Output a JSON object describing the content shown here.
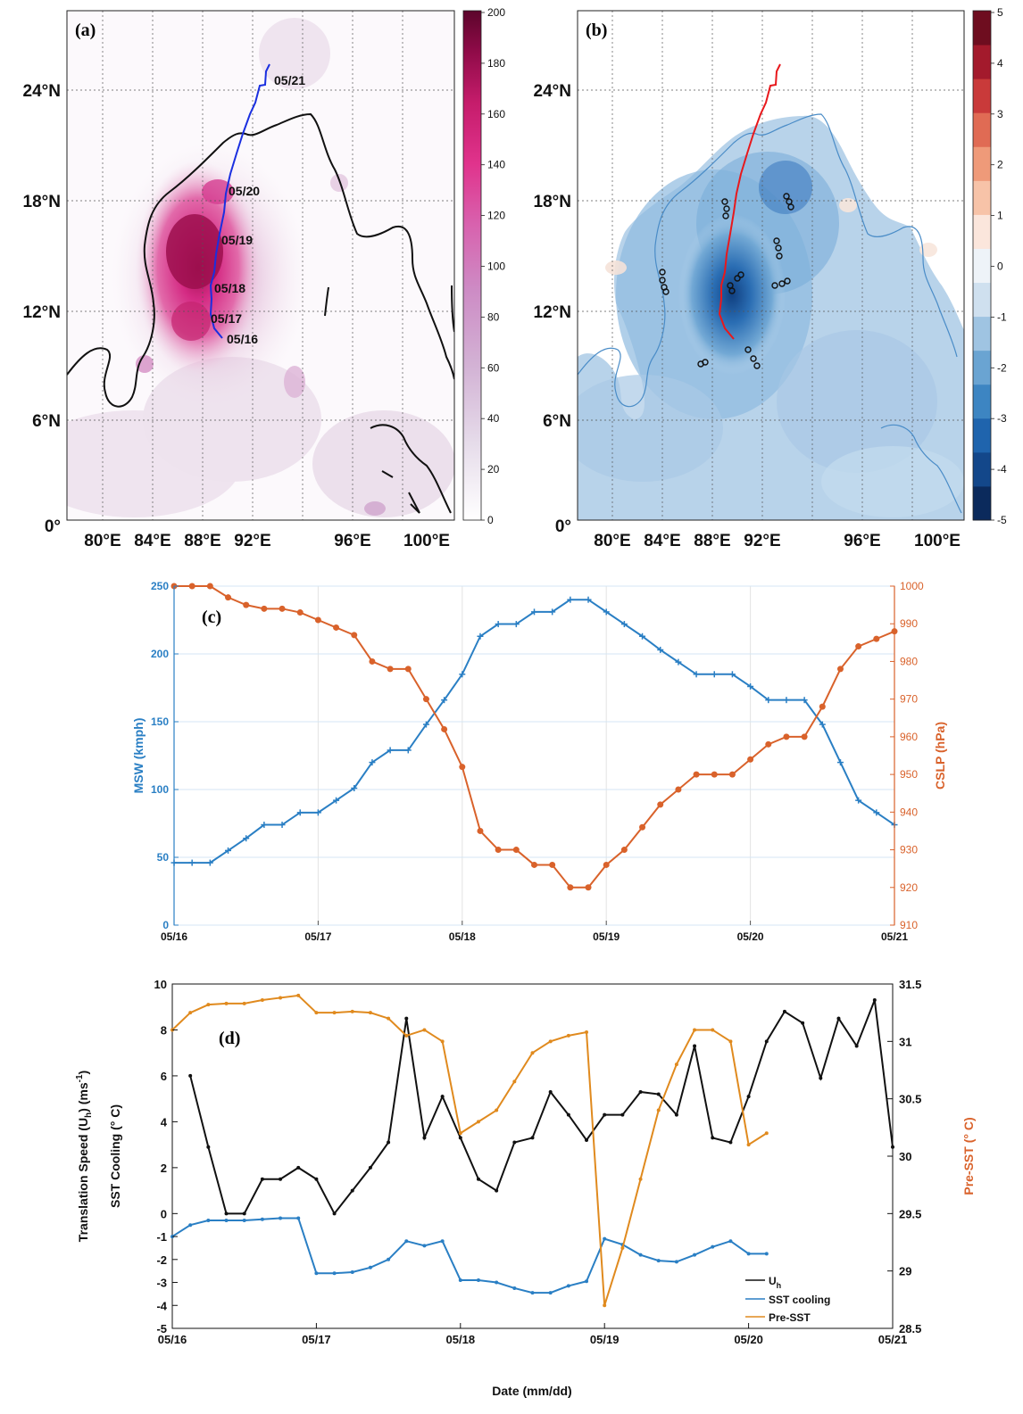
{
  "panel_a": {
    "label": "(a)",
    "track_color": "#1a2fe0",
    "track_labels": [
      "05/21",
      "05/20",
      "05/19",
      "05/18",
      "05/17",
      "05/16"
    ],
    "lat_ticks": [
      "24°N",
      "18°N",
      "12°N",
      "6°N",
      "0°"
    ],
    "lon_ticks": [
      "80°E",
      "84°E",
      "88°E",
      "92°E",
      "96°E",
      "100°E"
    ],
    "colorbar": {
      "ticks": [
        "200",
        "180",
        "160",
        "140",
        "120",
        "100",
        "80",
        "60",
        "40",
        "20",
        "0"
      ],
      "range": [
        0,
        200
      ],
      "colors": [
        "#ffffff",
        "#ece4ef",
        "#dcc6df",
        "#d0a8cf",
        "#c98ac3",
        "#d069b2",
        "#db4b9f",
        "#e0308a",
        "#c81b6e",
        "#9c0c4f",
        "#6e0533"
      ]
    }
  },
  "panel_b": {
    "label": "(b)",
    "track_color": "#e8181c",
    "lat_ticks": [
      "24°N",
      "18°N",
      "12°N",
      "6°N",
      "0°"
    ],
    "lon_ticks": [
      "80°E",
      "84°E",
      "88°E",
      "92°E",
      "96°E",
      "100°E"
    ],
    "colorbar": {
      "ticks": [
        "5",
        "4",
        "3",
        "2",
        "1",
        "0",
        "-1",
        "-2",
        "-3",
        "-4",
        "-5"
      ],
      "range": [
        -5,
        5
      ],
      "colors": [
        "#0b2a5c",
        "#13478a",
        "#1f64ad",
        "#3d85c2",
        "#6aa4d2",
        "#9fc4e2",
        "#cfe0ef",
        "#eef3f8",
        "#fbe6dc",
        "#f7c3a8",
        "#ef9a79",
        "#e06b54",
        "#c93a3a",
        "#a31a2c",
        "#6e0d1f"
      ]
    }
  },
  "chart_data": [
    {
      "panel": "(c)",
      "type": "line",
      "x_ticks": [
        "05/16",
        "05/17",
        "05/18",
        "05/19",
        "05/20",
        "05/21"
      ],
      "x_range": [
        0,
        5
      ],
      "y_left": {
        "label": "MSW (kmph)",
        "range": [
          0,
          250
        ],
        "ticks": [
          "0",
          "50",
          "100",
          "150",
          "200",
          "250"
        ],
        "color": "#2a7fc4"
      },
      "y_right": {
        "label": "CSLP (hPa)",
        "range": [
          910,
          1000
        ],
        "ticks": [
          "910",
          "920",
          "930",
          "940",
          "950",
          "960",
          "970",
          "980",
          "990",
          "1000"
        ],
        "color": "#d9622b"
      },
      "grid": true,
      "series": [
        {
          "axis": "left",
          "marker": "plus",
          "color": "#2a7fc4",
          "x": [
            0,
            0.125,
            0.25,
            0.375,
            0.5,
            0.625,
            0.75,
            0.875,
            1,
            1.125,
            1.25,
            1.375,
            1.5,
            1.625,
            1.75,
            1.875,
            2,
            2.125,
            2.25,
            2.375,
            2.5,
            2.625,
            2.75,
            2.875,
            3,
            3.125,
            3.25,
            3.375,
            3.5,
            3.625,
            3.75,
            3.875,
            4,
            4.125,
            4.25,
            4.375,
            4.5,
            4.625,
            4.75,
            4.875,
            5
          ],
          "y": [
            46,
            46,
            46,
            55,
            64,
            74,
            74,
            83,
            83,
            92,
            101,
            120,
            129,
            129,
            148,
            166,
            185,
            213,
            222,
            222,
            231,
            231,
            240,
            240,
            231,
            222,
            213,
            203,
            194,
            185,
            185,
            185,
            176,
            166,
            166,
            166,
            148,
            120,
            92,
            83,
            74
          ]
        },
        {
          "axis": "right",
          "marker": "circle",
          "color": "#d9622b",
          "x": [
            0,
            0.125,
            0.25,
            0.375,
            0.5,
            0.625,
            0.75,
            0.875,
            1,
            1.125,
            1.25,
            1.375,
            1.5,
            1.625,
            1.75,
            1.875,
            2,
            2.125,
            2.25,
            2.375,
            2.5,
            2.625,
            2.75,
            2.875,
            3,
            3.125,
            3.25,
            3.375,
            3.5,
            3.625,
            3.75,
            3.875,
            4,
            4.125,
            4.25,
            4.375,
            4.5,
            4.625,
            4.75,
            4.875,
            5
          ],
          "y": [
            1000,
            1000,
            1000,
            997,
            995,
            994,
            994,
            993,
            991,
            989,
            987,
            980,
            978,
            978,
            970,
            962,
            952,
            935,
            930,
            930,
            926,
            926,
            920,
            920,
            926,
            930,
            936,
            942,
            946,
            950,
            950,
            950,
            954,
            958,
            960,
            960,
            968,
            978,
            984,
            986,
            988
          ]
        }
      ]
    },
    {
      "panel": "(d)",
      "type": "line",
      "xlabel": "Date (mm/dd)",
      "x_ticks": [
        "05/16",
        "05/17",
        "05/18",
        "05/19",
        "05/20",
        "05/21"
      ],
      "x_range": [
        0,
        5
      ],
      "y_left": {
        "label_line1": "Translation Speed (U",
        "label_sub": "h",
        "label_line1_end": ") (ms",
        "label_sup": "-1",
        "label_close": ")",
        "label_line2": "SST Cooling (° C)",
        "range": [
          -5,
          10
        ],
        "ticks": [
          "-5",
          "-4",
          "-3",
          "-2",
          "-1",
          "0",
          "2",
          "4",
          "6",
          "8",
          "10"
        ]
      },
      "y_right": {
        "label": "Pre-SST (° C)",
        "range": [
          28.5,
          31.5
        ],
        "ticks": [
          "28.5",
          "29",
          "29.5",
          "30",
          "30.5",
          "31",
          "31.5"
        ],
        "color": "#d9622b"
      },
      "legend": {
        "position": "bottom-right",
        "entries": [
          "U",
          "SST cooling",
          "Pre-SST"
        ],
        "uh_sub": "h"
      },
      "series": [
        {
          "name": "U_h",
          "axis": "left",
          "color": "#111111",
          "x": [
            0.125,
            0.25,
            0.375,
            0.5,
            0.625,
            0.75,
            0.875,
            1,
            1.125,
            1.25,
            1.375,
            1.5,
            1.625,
            1.75,
            1.875,
            2,
            2.125,
            2.25,
            2.375,
            2.5,
            2.625,
            2.75,
            2.875,
            3,
            3.125,
            3.25,
            3.375,
            3.5,
            3.625,
            3.75,
            3.875,
            4,
            4.125,
            4.25,
            4.375,
            4.5,
            4.625,
            4.75,
            4.875,
            5
          ],
          "y": [
            6.0,
            2.9,
            0.0,
            0.0,
            1.5,
            1.5,
            2.0,
            1.5,
            0.0,
            1.0,
            2.0,
            3.1,
            8.5,
            3.3,
            5.1,
            3.3,
            1.5,
            1.0,
            3.1,
            3.3,
            5.3,
            4.3,
            3.2,
            4.3,
            4.3,
            5.3,
            5.2,
            4.3,
            7.3,
            3.3,
            3.1,
            5.1,
            7.5,
            8.8,
            8.3,
            5.9,
            8.5,
            7.3,
            9.3,
            2.9
          ]
        },
        {
          "name": "SST cooling",
          "axis": "left",
          "color": "#2a7fc4",
          "x": [
            0,
            0.125,
            0.25,
            0.375,
            0.5,
            0.625,
            0.75,
            0.875,
            1,
            1.125,
            1.25,
            1.375,
            1.5,
            1.625,
            1.75,
            1.875,
            2,
            2.125,
            2.25,
            2.375,
            2.5,
            2.625,
            2.75,
            2.875,
            3,
            3.125,
            3.25,
            3.375,
            3.5,
            3.625,
            3.75,
            3.875,
            4,
            4.125
          ],
          "y": [
            -1.0,
            -0.5,
            -0.3,
            -0.3,
            -0.3,
            -0.25,
            -0.2,
            -0.2,
            -2.6,
            -2.6,
            -2.55,
            -2.35,
            -2.0,
            -1.2,
            -1.4,
            -1.2,
            -2.9,
            -2.9,
            -3.0,
            -3.25,
            -3.45,
            -3.45,
            -3.15,
            -2.95,
            -1.1,
            -1.35,
            -1.8,
            -2.05,
            -2.1,
            -1.8,
            -1.45,
            -1.2,
            -1.75,
            -1.75
          ]
        },
        {
          "name": "Pre-SST",
          "axis": "right",
          "color": "#e08a1e",
          "x": [
            0,
            0.125,
            0.25,
            0.375,
            0.5,
            0.625,
            0.75,
            0.875,
            1,
            1.125,
            1.25,
            1.375,
            1.5,
            1.625,
            1.75,
            1.875,
            2,
            2.125,
            2.25,
            2.375,
            2.5,
            2.625,
            2.75,
            2.875,
            3,
            3.125,
            3.25,
            3.375,
            3.5,
            3.625,
            3.75,
            3.875,
            4,
            4.125
          ],
          "y": [
            31.1,
            31.25,
            31.32,
            31.33,
            31.33,
            31.36,
            31.38,
            31.4,
            31.25,
            31.25,
            31.26,
            31.25,
            31.2,
            31.05,
            31.1,
            31.0,
            30.2,
            30.3,
            30.4,
            30.65,
            30.9,
            31.0,
            31.05,
            31.08,
            28.7,
            29.2,
            29.8,
            30.4,
            30.8,
            31.1,
            31.1,
            31.0,
            30.1,
            30.2
          ]
        }
      ]
    }
  ]
}
